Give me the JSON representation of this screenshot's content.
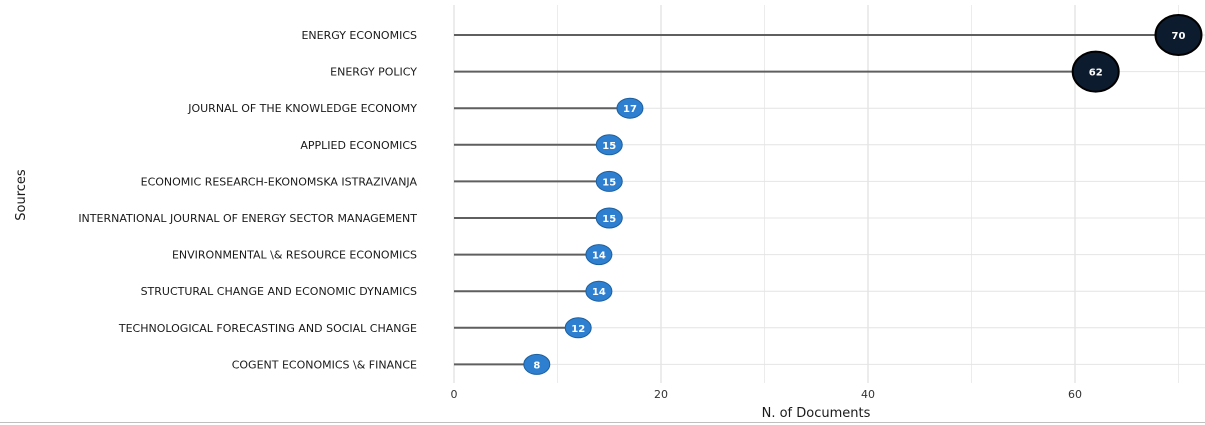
{
  "chart_data": {
    "type": "lollipop",
    "categories": [
      "ENERGY ECONOMICS",
      "ENERGY POLICY",
      "JOURNAL OF THE KNOWLEDGE ECONOMY",
      "APPLIED ECONOMICS",
      "ECONOMIC RESEARCH-EKONOMSKA ISTRAZIVANJA",
      "INTERNATIONAL JOURNAL OF ENERGY SECTOR MANAGEMENT",
      "ENVIRONMENTAL \\& RESOURCE ECONOMICS",
      "STRUCTURAL CHANGE AND ECONOMIC DYNAMICS",
      "TECHNOLOGICAL FORECASTING AND SOCIAL CHANGE",
      "COGENT ECONOMICS \\& FINANCE"
    ],
    "values": [
      70,
      62,
      17,
      15,
      15,
      15,
      14,
      14,
      12,
      8
    ],
    "xlabel": "N. of Documents",
    "ylabel": "Sources",
    "xlim": [
      0,
      72
    ],
    "xticks": [
      0,
      20,
      40,
      60
    ],
    "grid": true,
    "colors": {
      "stem": "#5f5f5f",
      "point_low": "#2e7fd0",
      "point_high": "#0d1b2e",
      "point_outline": "#000000",
      "label": "#ffffff"
    }
  }
}
